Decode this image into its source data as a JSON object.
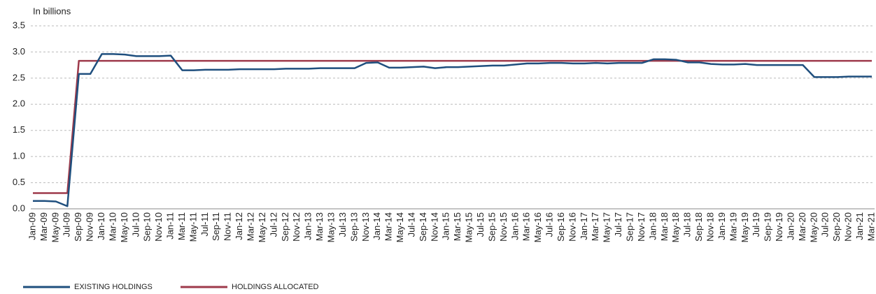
{
  "chart_data": {
    "type": "line",
    "ylabel": "In billions",
    "categories": [
      "Jan-09",
      "Mar-09",
      "May-09",
      "Jul-09",
      "Sep-09",
      "Nov-09",
      "Jan-10",
      "Mar-10",
      "May-10",
      "Jul-10",
      "Sep-10",
      "Nov-10",
      "Jan-11",
      "Mar-11",
      "May-11",
      "Jul-11",
      "Sep-11",
      "Nov-11",
      "Jan-12",
      "Mar-12",
      "May-12",
      "Jul-12",
      "Sep-12",
      "Nov-12",
      "Jan-13",
      "Mar-13",
      "May-13",
      "Jul-13",
      "Sep-13",
      "Nov-13",
      "Jan-14",
      "Mar-14",
      "May-14",
      "Jul-14",
      "Sep-14",
      "Nov-14",
      "Jan-15",
      "Mar-15",
      "May-15",
      "Jul-15",
      "Sep-15",
      "Nov-15",
      "Jan-16",
      "Mar-16",
      "May-16",
      "Jul-16",
      "Sep-16",
      "Nov-16",
      "Jan-17",
      "Mar-17",
      "May-17",
      "Jul-17",
      "Sep-17",
      "Nov-17",
      "Jan-18",
      "Mar-18",
      "May-18",
      "Jul-18",
      "Sep-18",
      "Nov-18",
      "Jan-19",
      "Mar-19",
      "May-19",
      "Jul-19",
      "Sep-19",
      "Nov-19",
      "Jan-20",
      "Mar-20",
      "May-20",
      "Jul-20",
      "Sep-20",
      "Nov-20",
      "Jan-21",
      "Mar-21"
    ],
    "series": [
      {
        "name": "EXISTING HOLDINGS",
        "color": "#1f4f7e",
        "values": [
          0.15,
          0.15,
          0.14,
          0.05,
          2.58,
          2.58,
          2.96,
          2.96,
          2.95,
          2.92,
          2.92,
          2.92,
          2.93,
          2.65,
          2.65,
          2.66,
          2.66,
          2.66,
          2.67,
          2.67,
          2.67,
          2.67,
          2.68,
          2.68,
          2.68,
          2.69,
          2.69,
          2.69,
          2.69,
          2.79,
          2.8,
          2.7,
          2.7,
          2.71,
          2.72,
          2.69,
          2.71,
          2.71,
          2.72,
          2.73,
          2.74,
          2.74,
          2.76,
          2.78,
          2.78,
          2.79,
          2.79,
          2.78,
          2.78,
          2.79,
          2.78,
          2.79,
          2.79,
          2.79,
          2.86,
          2.86,
          2.85,
          2.8,
          2.8,
          2.77,
          2.76,
          2.76,
          2.77,
          2.75,
          2.75,
          2.75,
          2.75,
          2.75,
          2.52,
          2.52,
          2.52,
          2.53,
          2.53,
          2.53
        ]
      },
      {
        "name": "HOLDINGS ALLOCATED",
        "color": "#9e3a4b",
        "values": [
          0.3,
          0.3,
          0.3,
          0.3,
          2.83,
          2.83,
          2.83,
          2.83,
          2.83,
          2.83,
          2.83,
          2.83,
          2.83,
          2.83,
          2.83,
          2.83,
          2.83,
          2.83,
          2.83,
          2.83,
          2.83,
          2.83,
          2.83,
          2.83,
          2.83,
          2.83,
          2.83,
          2.83,
          2.83,
          2.83,
          2.83,
          2.83,
          2.83,
          2.83,
          2.83,
          2.83,
          2.83,
          2.83,
          2.83,
          2.83,
          2.83,
          2.83,
          2.83,
          2.83,
          2.83,
          2.83,
          2.83,
          2.83,
          2.83,
          2.83,
          2.83,
          2.83,
          2.83,
          2.83,
          2.83,
          2.83,
          2.83,
          2.83,
          2.83,
          2.83,
          2.83,
          2.83,
          2.83,
          2.83,
          2.83,
          2.83,
          2.83,
          2.83,
          2.83,
          2.83,
          2.83,
          2.83,
          2.83,
          2.83
        ]
      }
    ],
    "ylim": [
      0,
      3.5
    ],
    "yticks": [
      {
        "value": 0,
        "label": "0.0"
      },
      0.5,
      {
        "value": 1,
        "label": "1.0"
      },
      1.5,
      {
        "value": 2,
        "label": "2.0"
      },
      2.5,
      {
        "value": 3,
        "label": "3.0"
      },
      3.5
    ],
    "grid": true
  }
}
